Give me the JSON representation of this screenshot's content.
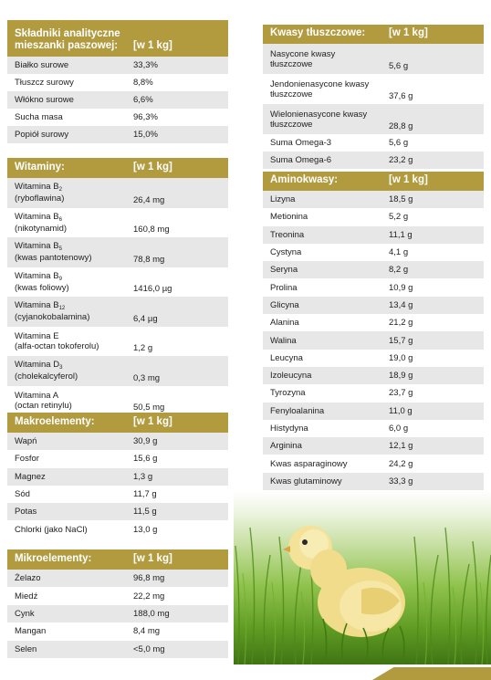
{
  "unit_header": "[w 1 kg]",
  "analytical": {
    "title": "Składniki analityczne mieszanki paszowej:",
    "rows": [
      {
        "name": "Białko surowe",
        "value": "33,3%"
      },
      {
        "name": "Tłuszcz surowy",
        "value": "8,8%"
      },
      {
        "name": "Włókno surowe",
        "value": "6,6%"
      },
      {
        "name": "Sucha masa",
        "value": "96,3%"
      },
      {
        "name": "Popiół surowy",
        "value": "15,0%"
      }
    ]
  },
  "vitamins": {
    "title": "Witaminy:",
    "rows": [
      {
        "name": "Witamina B",
        "sub": "2",
        "name2": "(ryboflawina)",
        "value": "26,4 mg"
      },
      {
        "name": "Witamina B",
        "sub": "6",
        "name2": "(nikotynamid)",
        "value": "160,8 mg"
      },
      {
        "name": "Witamina B",
        "sub": "5",
        "name2": "(kwas pantotenowy)",
        "value": "78,8 mg"
      },
      {
        "name": "Witamina B",
        "sub": "9",
        "name2": "(kwas foliowy)",
        "value": "1416,0 µg"
      },
      {
        "name": "Witamina B",
        "sub": "12",
        "name2": "(cyjanokobalamina)",
        "value": "6,4 µg"
      },
      {
        "name": "Witamina E",
        "sub": "",
        "name2": "(alfa-octan tokoferolu)",
        "value": "1,2 g"
      },
      {
        "name": "Witamina D",
        "sub": "3",
        "name2": "(cholekalcyferol)",
        "value": "0,3 mg"
      },
      {
        "name": "Witamina A",
        "sub": "",
        "name2": "(octan retinylu)",
        "value": "50,5 mg"
      }
    ]
  },
  "macro": {
    "title": "Makroelementy:",
    "rows": [
      {
        "name": "Wapń",
        "value": "30,9 g"
      },
      {
        "name": "Fosfor",
        "value": "15,6 g"
      },
      {
        "name": "Magnez",
        "value": "1,3 g"
      },
      {
        "name": "Sód",
        "value": "11,7 g"
      },
      {
        "name": "Potas",
        "value": "11,5 g"
      },
      {
        "name": "Chlorki (jako NaCl)",
        "value": "13,0 g"
      }
    ]
  },
  "micro": {
    "title": "Mikroelementy:",
    "rows": [
      {
        "name": "Żelazo",
        "value": "96,8 mg"
      },
      {
        "name": "Miedź",
        "value": "22,2 mg"
      },
      {
        "name": "Cynk",
        "value": "188,0 mg"
      },
      {
        "name": "Mangan",
        "value": "8,4 mg"
      },
      {
        "name": "Selen",
        "value": "<5,0 mg"
      }
    ]
  },
  "fatty": {
    "title": "Kwasy tłuszczowe:",
    "rows": [
      {
        "name": "Nasycone kwasy",
        "name2": "tłuszczowe",
        "value": "5,6 g"
      },
      {
        "name": "Jendonienasycone kwasy",
        "name2": "tłuszczowe",
        "value": "37,6 g"
      },
      {
        "name": "Wielonienasycone kwasy",
        "name2": "tłuszczowe",
        "value": "28,8 g"
      },
      {
        "name": "Suma Omega-3",
        "name2": "",
        "value": "5,6 g"
      },
      {
        "name": "Suma Omega-6",
        "name2": "",
        "value": "23,2 g"
      }
    ]
  },
  "amino": {
    "title": "Aminokwasy:",
    "rows": [
      {
        "name": "Lizyna",
        "value": "18,5 g"
      },
      {
        "name": "Metionina",
        "value": "5,2 g"
      },
      {
        "name": "Treonina",
        "value": "11,1 g"
      },
      {
        "name": "Cystyna",
        "value": "4,1 g"
      },
      {
        "name": "Seryna",
        "value": "8,2 g"
      },
      {
        "name": "Prolina",
        "value": "10,9 g"
      },
      {
        "name": "Glicyna",
        "value": "13,4 g"
      },
      {
        "name": "Alanina",
        "value": "21,2 g"
      },
      {
        "name": "Walina",
        "value": "15,7 g"
      },
      {
        "name": "Leucyna",
        "value": "19,0 g"
      },
      {
        "name": "Izoleucyna",
        "value": "18,9 g"
      },
      {
        "name": "Tyrozyna",
        "value": "23,7 g"
      },
      {
        "name": "Fenyloalanina",
        "value": "11,0 g"
      },
      {
        "name": "Histydyna",
        "value": "6,0 g"
      },
      {
        "name": "Arginina",
        "value": "12,1 g"
      },
      {
        "name": "Kwas asparaginowy",
        "value": "24,2 g"
      },
      {
        "name": "Kwas glutaminowy",
        "value": "33,3 g"
      }
    ]
  },
  "colors": {
    "header": "#b29a3f",
    "stripe": "#e7e7e7"
  },
  "image": {
    "subject": "chick-in-grass"
  }
}
